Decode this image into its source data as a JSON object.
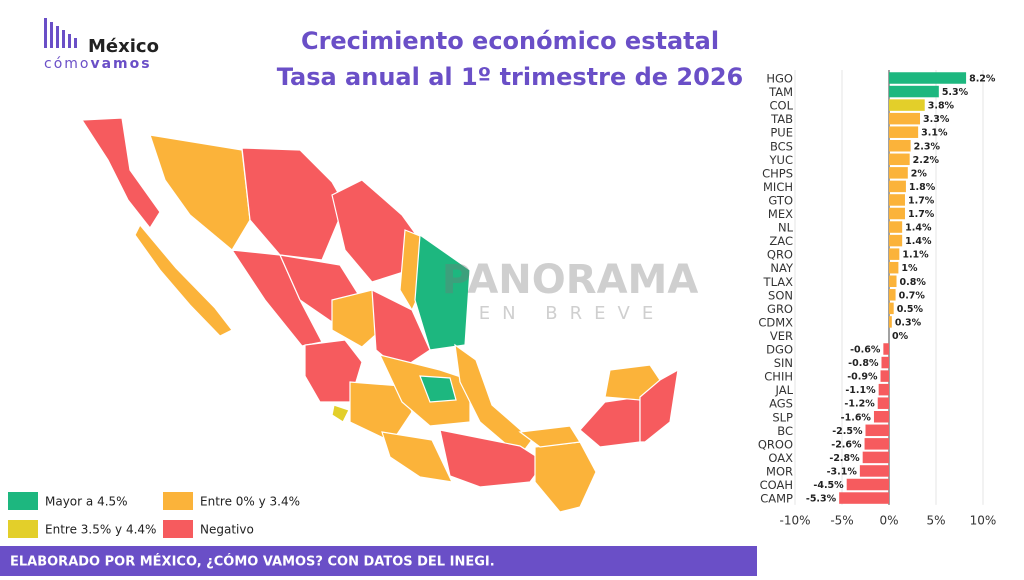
{
  "logo": {
    "name": "México",
    "tagline_1": "cómo",
    "tagline_2": "vamos"
  },
  "chart_data": {
    "type": "bar",
    "orientation": "horizontal",
    "title": "Crecimiento económico estatal",
    "subtitle": "Tasa anual al 1º trimestre de 2026",
    "categories": [
      "HGO",
      "TAM",
      "COL",
      "TAB",
      "PUE",
      "BCS",
      "YUC",
      "CHPS",
      "MICH",
      "GTO",
      "MEX",
      "NL",
      "ZAC",
      "QRO",
      "NAY",
      "TLAX",
      "SON",
      "GRO",
      "CDMX",
      "VER",
      "DGO",
      "SIN",
      "CHIH",
      "JAL",
      "AGS",
      "SLP",
      "BC",
      "QROO",
      "OAX",
      "MOR",
      "COAH",
      "CAMP"
    ],
    "values": [
      8.2,
      5.3,
      3.8,
      3.3,
      3.1,
      2.3,
      2.2,
      2,
      1.8,
      1.7,
      1.7,
      1.4,
      1.4,
      1.1,
      1,
      0.8,
      0.7,
      0.5,
      0.3,
      0,
      -0.6,
      -0.8,
      -0.9,
      -1.1,
      -1.2,
      -1.6,
      -2.5,
      -2.6,
      -2.8,
      -3.1,
      -4.5,
      -5.3
    ],
    "value_labels": [
      "8.2%",
      "5.3%",
      "3.8%",
      "3.3%",
      "3.1%",
      "2.3%",
      "2.2%",
      "2%",
      "1.8%",
      "1.7%",
      "1.7%",
      "1.4%",
      "1.4%",
      "1.1%",
      "1%",
      "0.8%",
      "0.7%",
      "0.5%",
      "0.3%",
      "0%",
      "-0.6%",
      "-0.8%",
      "-0.9%",
      "-1.1%",
      "-1.2%",
      "-1.6%",
      "-2.5%",
      "-2.6%",
      "-2.8%",
      "-3.1%",
      "-4.5%",
      "-5.3%"
    ],
    "colors": [
      "#1db77f",
      "#1db77f",
      "#e3cf2a",
      "#fbb33a",
      "#fbb33a",
      "#fbb33a",
      "#fbb33a",
      "#fbb33a",
      "#fbb33a",
      "#fbb33a",
      "#fbb33a",
      "#fbb33a",
      "#fbb33a",
      "#fbb33a",
      "#fbb33a",
      "#fbb33a",
      "#fbb33a",
      "#fbb33a",
      "#fbb33a",
      "#fbb33a",
      "#f65b5e",
      "#f65b5e",
      "#f65b5e",
      "#f65b5e",
      "#f65b5e",
      "#f65b5e",
      "#f65b5e",
      "#f65b5e",
      "#f65b5e",
      "#f65b5e",
      "#f65b5e",
      "#f65b5e"
    ],
    "xlim": [
      -10,
      11.5
    ],
    "xticks": [
      {
        "value": -10,
        "label": "-10%"
      },
      {
        "value": -5,
        "label": "-5%"
      },
      {
        "value": 0,
        "label": "0%"
      },
      {
        "value": 5,
        "label": "5%"
      },
      {
        "value": 10,
        "label": "10%"
      }
    ],
    "grid": true
  },
  "legend": [
    {
      "label": "Mayor a 4.5%",
      "color": "#1db77f"
    },
    {
      "label": "Entre 0% y 3.4%",
      "color": "#fbb33a"
    },
    {
      "label": "Entre 3.5% y 4.4%",
      "color": "#e3cf2a"
    },
    {
      "label": "Negativo",
      "color": "#f65b5e"
    }
  ],
  "watermark": {
    "line_1": "PANORAMA",
    "line_2": "EN BREVE"
  },
  "footer": "ELABORADO POR MÉXICO, ¿CÓMO VAMOS? CON DATOS DEL INEGI."
}
